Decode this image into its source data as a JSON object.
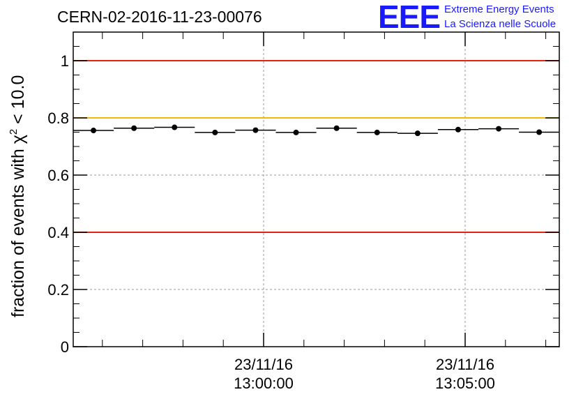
{
  "chart_data": {
    "type": "scatter",
    "title": "CERN-02-2016-11-23-00076",
    "ylabel": "fraction of events with χ",
    "ylabel_sup": "2",
    "ylabel_tail": " < 10.0",
    "ylim": [
      0,
      1.1
    ],
    "yticks": [
      0,
      0.2,
      0.4,
      0.6,
      0.8,
      1
    ],
    "ytick_labels": [
      "0",
      "0.2",
      "0.4",
      "0.6",
      "0.8",
      "1"
    ],
    "xtick_labels": [
      {
        "date": "23/11/16",
        "time": "13:00:00"
      },
      {
        "date": "23/11/16",
        "time": "13:05:00"
      }
    ],
    "points": [
      0.756,
      0.764,
      0.767,
      0.749,
      0.757,
      0.749,
      0.764,
      0.749,
      0.746,
      0.759,
      0.762,
      0.75
    ],
    "reference_lines": [
      {
        "y": 1.0,
        "color": "#e8200c"
      },
      {
        "y": 0.8,
        "color": "#f5b800"
      },
      {
        "y": 0.4,
        "color": "#e8200c"
      }
    ],
    "grid": true
  },
  "logo": {
    "mark": "EEE",
    "line1": "Extreme Energy Events",
    "line2": "La Scienza nelle Scuole"
  }
}
